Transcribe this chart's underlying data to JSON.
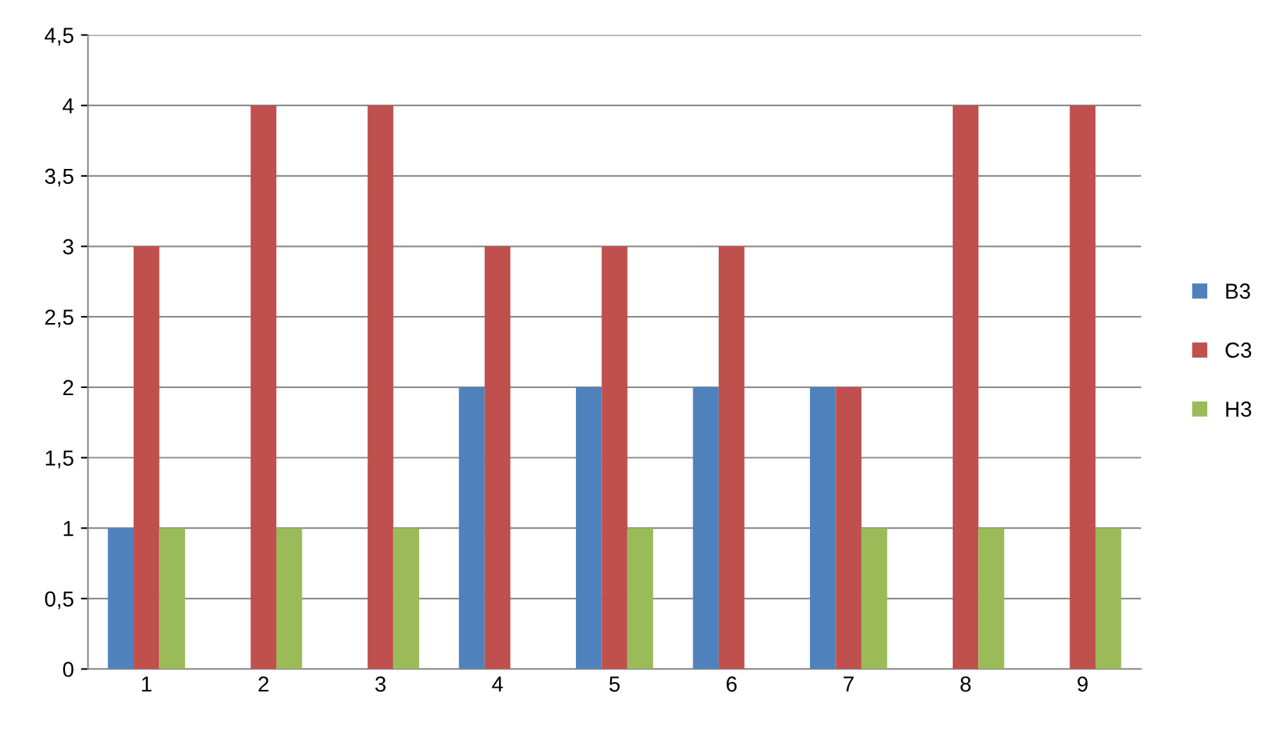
{
  "chart_data": {
    "type": "bar",
    "categories": [
      "1",
      "2",
      "3",
      "4",
      "5",
      "6",
      "7",
      "8",
      "9"
    ],
    "series": [
      {
        "name": "B3",
        "color": "#4f81bd",
        "values": [
          1,
          null,
          null,
          2,
          2,
          2,
          2,
          null,
          null
        ]
      },
      {
        "name": "C3",
        "color": "#c0504d",
        "values": [
          3,
          4,
          4,
          3,
          3,
          3,
          2,
          4,
          4
        ]
      },
      {
        "name": "H3",
        "color": "#9bbb59",
        "values": [
          1,
          1,
          1,
          null,
          1,
          null,
          1,
          1,
          1
        ]
      }
    ],
    "ylim": [
      0,
      4.5
    ],
    "yticks": [
      0,
      {
        "value": 0.5,
        "label": "0,5"
      },
      1,
      {
        "value": 1.5,
        "label": "1,5"
      },
      2,
      {
        "value": 2.5,
        "label": "2,5"
      },
      3,
      {
        "value": 3.5,
        "label": "3,5"
      },
      4,
      {
        "value": 4.5,
        "label": "4,5"
      }
    ],
    "grid": "y",
    "legend": "right"
  }
}
